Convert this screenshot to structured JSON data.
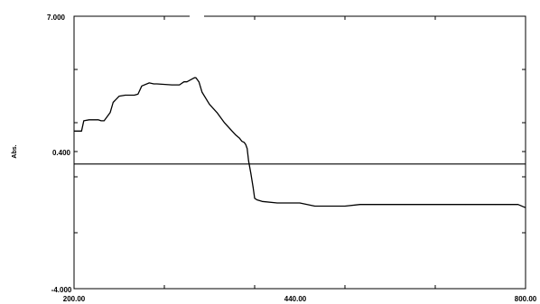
{
  "chart_data": {
    "type": "line",
    "title": "",
    "xlabel": "",
    "ylabel": "Abs.",
    "xlim": [
      200,
      800
    ],
    "ylim": [
      -4,
      7
    ],
    "grid": false,
    "legend": "none",
    "x_tick_labels": [
      "200.00",
      "440.00",
      "800.00"
    ],
    "y_tick_labels": [
      "7.000",
      "0.400",
      "-4.000"
    ],
    "y_label_values": [
      7,
      0.4,
      -4
    ],
    "colors": {
      "spectrum": "#000000",
      "baseline": "#000000",
      "axes": "#000000"
    },
    "baseline_y": 0.0,
    "series": [
      {
        "x": [
          200,
          210,
          213,
          220,
          232,
          236,
          240,
          248,
          252,
          260,
          268,
          272,
          280,
          285,
          290,
          300,
          306,
          310,
          330,
          340,
          346,
          350,
          360,
          362,
          366,
          370,
          380,
          390,
          400,
          410,
          415,
          420,
          423,
          426,
          428,
          430,
          432,
          435,
          438,
          440,
          443,
          450,
          470,
          480,
          500,
          520,
          540,
          560,
          580,
          600,
          640,
          680,
          700,
          720,
          760,
          780,
          790,
          800
        ],
        "y": [
          1.4,
          1.4,
          1.9,
          1.95,
          1.95,
          1.9,
          1.9,
          2.3,
          2.8,
          3.1,
          3.15,
          3.15,
          3.15,
          3.2,
          3.6,
          3.75,
          3.7,
          3.7,
          3.65,
          3.65,
          3.8,
          3.8,
          4.0,
          4.0,
          3.8,
          3.3,
          2.7,
          2.3,
          1.8,
          1.4,
          1.2,
          1.05,
          0.9,
          0.85,
          0.75,
          0.55,
          0.1,
          -0.3,
          -0.75,
          -1.1,
          -1.15,
          -1.2,
          -1.25,
          -1.25,
          -1.25,
          -1.35,
          -1.35,
          -1.35,
          -1.3,
          -1.3,
          -1.3,
          -1.3,
          -1.3,
          -1.3,
          -1.3,
          -1.3,
          -1.3,
          -1.4
        ]
      }
    ]
  }
}
